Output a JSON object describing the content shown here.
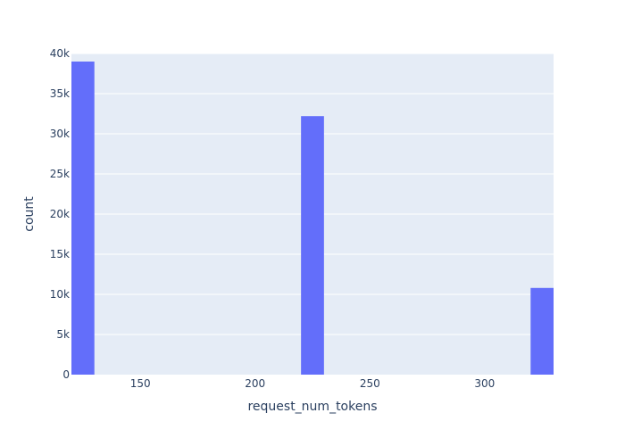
{
  "chart_data": {
    "type": "bar",
    "title": "",
    "xlabel": "request_num_tokens",
    "ylabel": "count",
    "xlim": [
      120,
      330
    ],
    "ylim": [
      0,
      40000
    ],
    "bin_width": 10,
    "x_ticks": [
      150,
      200,
      250,
      300
    ],
    "x_tick_labels": [
      "150",
      "200",
      "250",
      "300"
    ],
    "y_ticks": [
      0,
      5000,
      10000,
      15000,
      20000,
      25000,
      30000,
      35000,
      40000
    ],
    "y_tick_labels": [
      "0",
      "5k",
      "10k",
      "15k",
      "20k",
      "25k",
      "30k",
      "35k",
      "40k"
    ],
    "bins": [
      {
        "x0": 120,
        "x1": 130,
        "count": 39000
      },
      {
        "x0": 220,
        "x1": 230,
        "count": 32200
      },
      {
        "x0": 320,
        "x1": 330,
        "count": 10800
      }
    ],
    "grid": true,
    "colors": {
      "bar": "#636efa",
      "plot_background": "#e5ecf6",
      "grid": "#ffffff",
      "text": "#2a3f5f"
    }
  }
}
